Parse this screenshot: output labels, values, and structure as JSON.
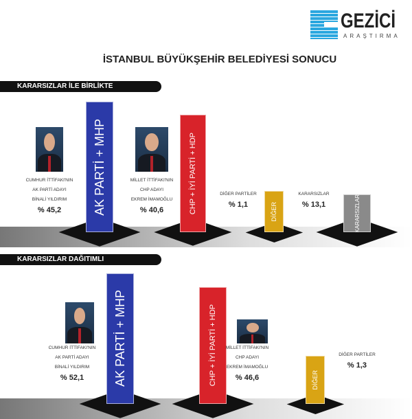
{
  "logo": {
    "name": "GEZİCİ",
    "sub": "ARAŞTIRMA"
  },
  "title": "İSTANBUL BÜYÜKŞEHİR BELEDİYESİ SONUCU",
  "chart_data": [
    {
      "type": "bar",
      "title": "KARARSIZLAR İLE BİRLİKTE",
      "categories": [
        "AK PARTİ + MHP",
        "CHP + İYİ PARTİ + HDP",
        "DİĞER",
        "KARARSIZLAR"
      ],
      "values": [
        45.2,
        40.6,
        1.1,
        13.1
      ],
      "colors": [
        "#2b3aa8",
        "#d8232a",
        "#d9a414",
        "#8a8a8a"
      ],
      "labels": [
        [
          "CUMHUR İTTİFAKI'NIN",
          "AK PARTİ ADAYI",
          "BİNALİ YILDIRIM"
        ],
        [
          "MİLLET İTTİFAKI'NIN",
          "CHP ADAYI",
          "EKREM İMAMOĞLU"
        ],
        [
          "DİĞER PARTİLER"
        ],
        [
          "KARARSIZLAR"
        ]
      ],
      "value_labels": [
        "% 45,2",
        "% 40,6",
        "% 1,1",
        "% 13,1"
      ]
    },
    {
      "type": "bar",
      "title": "KARARSIZLAR DAĞITIMLI",
      "categories": [
        "AK PARTİ + MHP",
        "CHP + İYİ PARTİ + HDP",
        "DİĞER"
      ],
      "values": [
        52.1,
        46.6,
        1.3
      ],
      "colors": [
        "#2b3aa8",
        "#d8232a",
        "#d9a414"
      ],
      "labels": [
        [
          "CUMHUR İTTİFAKI'NIN",
          "AK PARTİ ADAYI",
          "BİNALİ YILDIRIM"
        ],
        [
          "MİLLET İTTİFAKI'NIN",
          "CHP ADAYI",
          "EKREM İMAMOĞLU"
        ],
        [
          "DİĞER PARTİLER"
        ]
      ],
      "value_labels": [
        "% 52,1",
        "% 46,6",
        "% 1,3"
      ]
    }
  ]
}
